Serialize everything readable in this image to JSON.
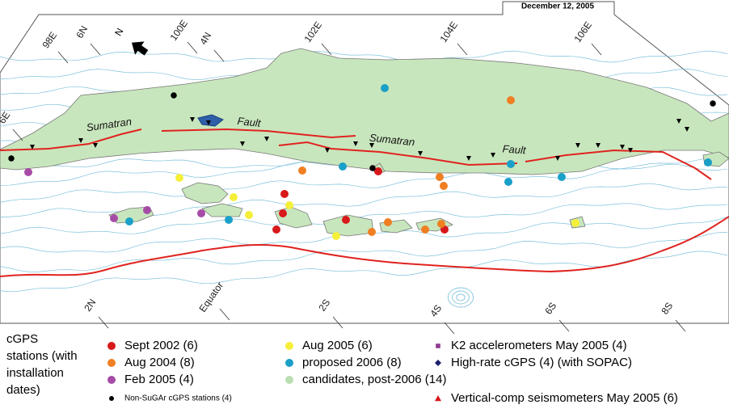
{
  "header": {
    "date": "December 12, 2005"
  },
  "map": {
    "grid_labels": [
      "98E",
      "6N",
      "100E",
      "4N",
      "102E",
      "104E",
      "106E",
      "6E",
      "2N",
      "Equator",
      "2S",
      "4S",
      "6S",
      "8S"
    ],
    "north": "N",
    "feature_labels": [
      "Sumatran",
      "Fault",
      "Sumatran",
      "Fault"
    ]
  },
  "legend": {
    "title_lines": [
      "cGPS",
      "stations (with",
      "installation",
      "dates)"
    ],
    "items": [
      {
        "label": "Sept 2002  (6)",
        "color": "#d7191c",
        "shape": "circle"
      },
      {
        "label": "Aug 2004 (8)",
        "color": "#f07f22",
        "shape": "circle"
      },
      {
        "label": "Feb 2005 (4)",
        "color": "#a64ca6",
        "shape": "circle"
      },
      {
        "label": "Non-SuGAr cGPS stations (4)",
        "color": "#000000",
        "shape": "dot"
      },
      {
        "label": "Aug 2005  (6)",
        "color": "#f5ef3a",
        "shape": "circle"
      },
      {
        "label": "proposed 2006 (8)",
        "color": "#1aa0c8",
        "shape": "circle"
      },
      {
        "label": "candidates, post-2006 (14)",
        "color": "#b9deb0",
        "shape": "circle"
      },
      {
        "label": "K2 accelerometers May 2005 (4)",
        "color": "#8e3a8e",
        "shape": "square"
      },
      {
        "label": "High-rate cGPS (4) (with SOPAC)",
        "color": "#1b1f6e",
        "shape": "diamond"
      },
      {
        "label": "Vertical-comp seismometers May 2005 (6)",
        "color": "#d7191c",
        "shape": "triangle"
      }
    ]
  }
}
